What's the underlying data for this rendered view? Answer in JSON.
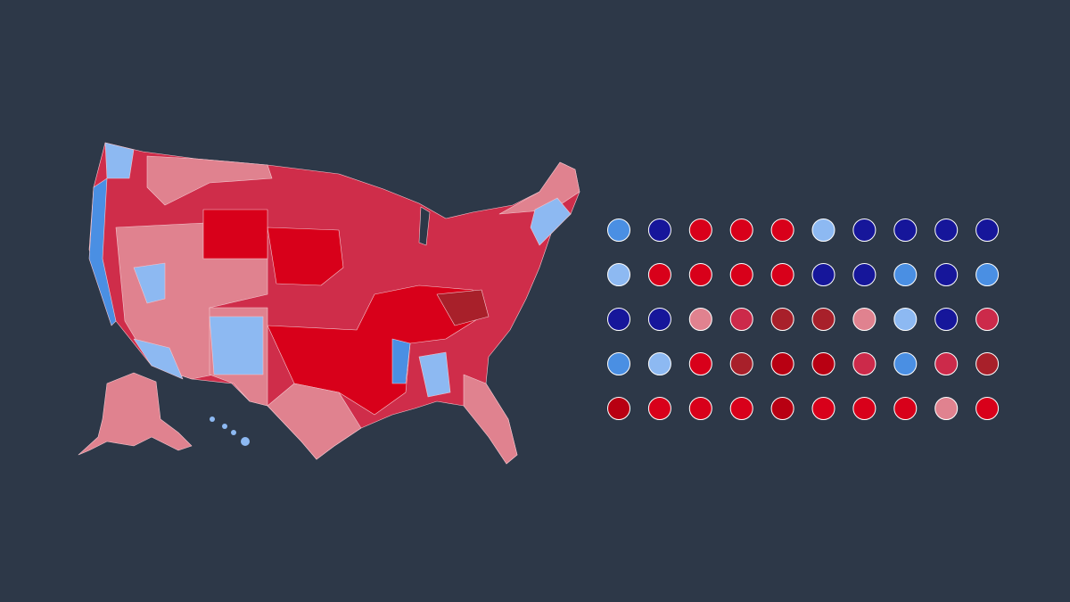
{
  "dot_grid": {
    "stroke": "#ffffff",
    "rows": [
      [
        "#4a8fe3",
        "#16169a",
        "#d8001a",
        "#d8001a",
        "#d8001a",
        "#8db9f2",
        "#16169a",
        "#16169a",
        "#16169a",
        "#16169a"
      ],
      [
        "#8db9f2",
        "#d8001a",
        "#d8001a",
        "#d8001a",
        "#d8001a",
        "#16169a",
        "#16169a",
        "#4a8fe3",
        "#16169a",
        "#4a8fe3"
      ],
      [
        "#16169a",
        "#16169a",
        "#e0828f",
        "#cc2a4a",
        "#a8202a",
        "#a8202a",
        "#e0828f",
        "#8db9f2",
        "#16169a",
        "#cc2a4a"
      ],
      [
        "#4a8fe3",
        "#8db9f2",
        "#d8001a",
        "#a8202a",
        "#b80012",
        "#b80012",
        "#cc2a4a",
        "#4a8fe3",
        "#cc2a4a",
        "#a8202a"
      ],
      [
        "#b80012",
        "#d8001a",
        "#d8001a",
        "#d8001a",
        "#b80012",
        "#d8001a",
        "#d8001a",
        "#d8001a",
        "#e0828f",
        "#d8001a"
      ]
    ]
  }
}
